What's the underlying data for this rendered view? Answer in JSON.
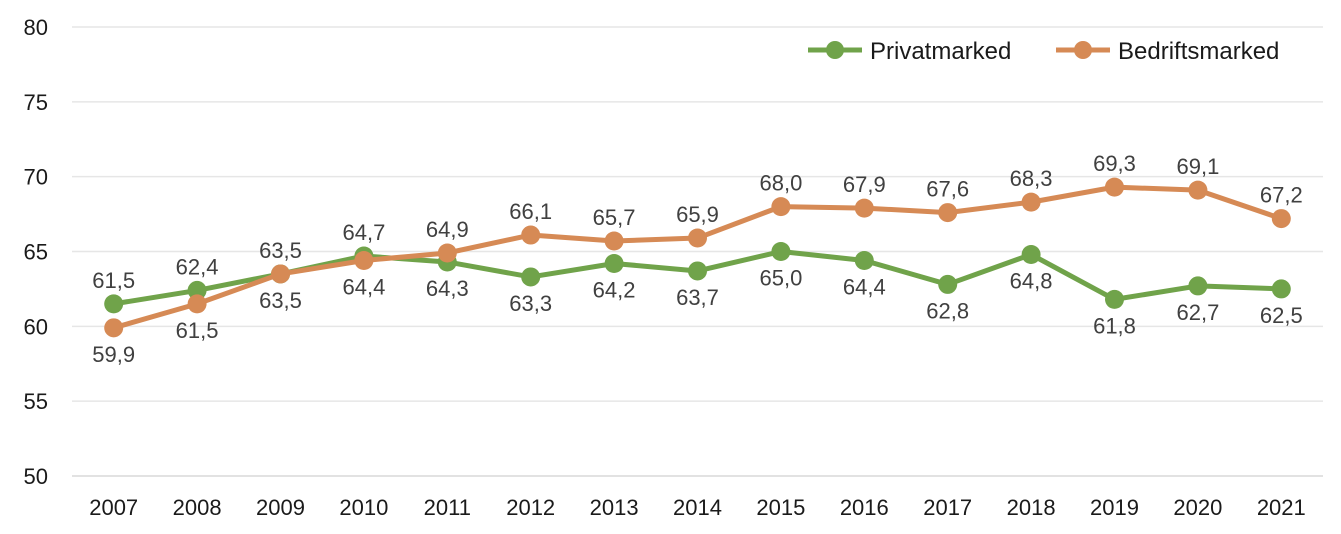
{
  "chart_data": {
    "type": "line",
    "categories": [
      "2007",
      "2008",
      "2009",
      "2010",
      "2011",
      "2012",
      "2013",
      "2014",
      "2015",
      "2016",
      "2017",
      "2018",
      "2019",
      "2020",
      "2021"
    ],
    "ylim": [
      50,
      80
    ],
    "yticks": [
      50,
      55,
      60,
      65,
      70,
      75,
      80
    ],
    "grid": true,
    "legend": "top-right",
    "series": [
      {
        "name": "Privatmarked",
        "color": "#70a34a",
        "values": [
          61.5,
          62.4,
          63.5,
          64.7,
          64.3,
          63.3,
          64.2,
          63.7,
          65.0,
          64.4,
          62.8,
          64.8,
          61.8,
          62.7,
          62.5
        ],
        "labels": [
          "61,5",
          "62,4",
          "63,5",
          "64,7",
          "64,3",
          "63,3",
          "64,2",
          "63,7",
          "65,0",
          "64,4",
          "62,8",
          "64,8",
          "61,8",
          "62,7",
          "62,5"
        ]
      },
      {
        "name": "Bedriftsmarked",
        "color": "#d68a55",
        "values": [
          59.9,
          61.5,
          63.5,
          64.4,
          64.9,
          66.1,
          65.7,
          65.9,
          68.0,
          67.9,
          67.6,
          68.3,
          69.3,
          69.1,
          67.2
        ],
        "labels": [
          "59,9",
          "61,5",
          "63,5",
          "64,4",
          "64,9",
          "66,1",
          "65,7",
          "65,9",
          "68,0",
          "67,9",
          "67,6",
          "68,3",
          "69,3",
          "69,1",
          "67,2"
        ]
      }
    ]
  }
}
